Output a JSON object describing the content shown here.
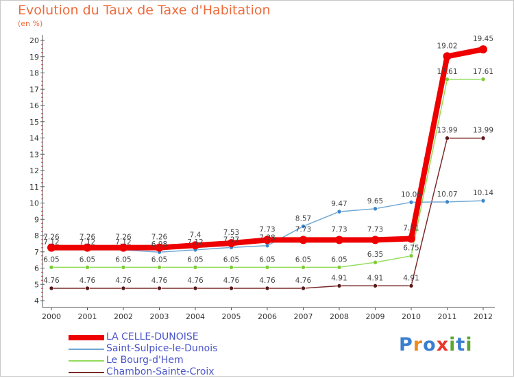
{
  "title": "Evolution du Taux de Taxe d'Habitation",
  "unit": "(en %)",
  "logo_text": "Proxiti",
  "chart_data": {
    "type": "line",
    "title": "Evolution du Taux de Taxe d'Habitation",
    "ylabel": "(en %)",
    "xlabel": "",
    "ylim": [
      4,
      20
    ],
    "yticks": [
      4,
      5,
      6,
      7,
      8,
      9,
      10,
      11,
      12,
      13,
      14,
      15,
      16,
      17,
      18,
      19,
      20
    ],
    "x": [
      "2000",
      "2001",
      "2002",
      "2003",
      "2004",
      "2005",
      "2006",
      "2007",
      "2008",
      "2009",
      "2010",
      "2011",
      "2012"
    ],
    "grid": false,
    "legend": "bottom-left",
    "series": [
      {
        "name": "LA CELLE-DUNOISE",
        "color": "#ee0000",
        "values": [
          7.26,
          7.26,
          7.26,
          7.26,
          7.4,
          7.53,
          7.73,
          7.73,
          7.73,
          7.73,
          7.81,
          19.02,
          19.45
        ],
        "labels": [
          "7.26",
          "7.26",
          "7.26",
          "7.26",
          "7.4",
          "7.53",
          "7.73",
          "7.73",
          "7.73",
          "7.73",
          "7.81",
          "19.02",
          "19.45"
        ]
      },
      {
        "name": "Saint-Sulpice-le-Dunois",
        "color": "#6ea6d4",
        "values": [
          7.12,
          7.12,
          7.12,
          6.98,
          7.12,
          7.27,
          7.38,
          8.57,
          9.47,
          9.65,
          10.05,
          10.07,
          10.14
        ],
        "labels": [
          "7.12",
          "7.12",
          "7.12",
          "6.98",
          "7.12",
          "7.27",
          "7.38",
          "8.57",
          "9.47",
          "9.65",
          "10.05",
          "10.07",
          "10.14"
        ]
      },
      {
        "name": "Le Bourg-d'Hem",
        "color": "#92dc5a",
        "values": [
          6.05,
          6.05,
          6.05,
          6.05,
          6.05,
          6.05,
          6.05,
          6.05,
          6.05,
          6.35,
          6.75,
          17.61,
          17.61
        ],
        "labels": [
          "6.05",
          "6.05",
          "6.05",
          "6.05",
          "6.05",
          "6.05",
          "6.05",
          "6.05",
          "6.05",
          "6.35",
          "6.75",
          "17.61",
          "17.61"
        ]
      },
      {
        "name": "Chambon-Sainte-Croix",
        "color": "#7a2a2a",
        "values": [
          4.76,
          4.76,
          4.76,
          4.76,
          4.76,
          4.76,
          4.76,
          4.76,
          4.91,
          4.91,
          4.91,
          13.99,
          13.99
        ],
        "labels": [
          "4.76",
          "4.76",
          "4.76",
          "4.76",
          "4.76",
          "4.76",
          "4.76",
          "4.76",
          "4.91",
          "4.91",
          "4.91",
          "13.99",
          "13.99"
        ]
      }
    ]
  }
}
